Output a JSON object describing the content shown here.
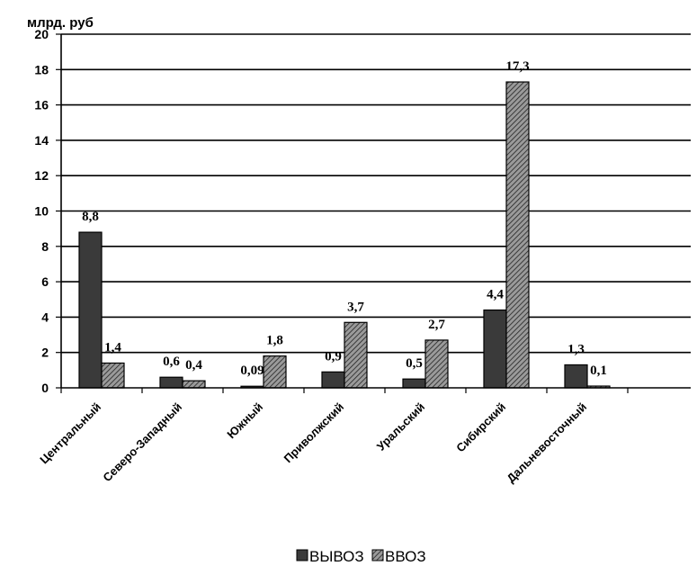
{
  "chart_data": {
    "type": "bar",
    "unit_label": "млрд. руб",
    "categories": [
      "Центральный",
      "Северо-Западный",
      "Южный",
      "Приволжский",
      "Уральский",
      "Сибирский",
      "Дальневосточный"
    ],
    "series": [
      {
        "name": "ВЫВОЗ",
        "values": [
          8.8,
          0.6,
          0.09,
          0.9,
          0.5,
          4.4,
          1.3
        ],
        "value_labels": [
          "8,8",
          "0,6",
          "0,09",
          "0,9",
          "0,5",
          "4,4",
          "1,3"
        ],
        "fill": "#3a3a3a",
        "pattern": "solid"
      },
      {
        "name": "ВВОЗ",
        "values": [
          1.4,
          0.4,
          1.8,
          3.7,
          2.7,
          17.3,
          0.1
        ],
        "value_labels": [
          "1,4",
          "0,4",
          "1,8",
          "3,7",
          "2,7",
          "17,3",
          "0,1"
        ],
        "fill": "#808080",
        "pattern": "hatched"
      }
    ],
    "ylim": [
      0,
      20
    ],
    "yticks": [
      0,
      2,
      4,
      6,
      8,
      10,
      12,
      14,
      16,
      18,
      20
    ],
    "grid": true,
    "legend_position": "bottom-center"
  }
}
